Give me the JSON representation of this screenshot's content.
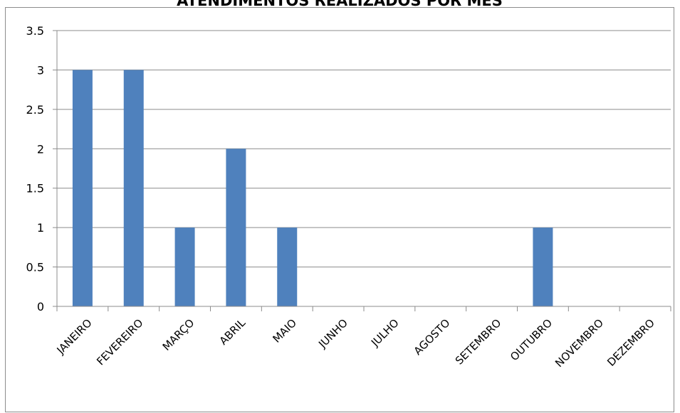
{
  "chart_data": {
    "type": "bar",
    "title": "ATENDIMENTOS REALIZADOS POR MÊS",
    "xlabel": "",
    "ylabel": "",
    "categories": [
      "JANEIRO",
      "FEVEREIRO",
      "MARÇO",
      "ABRIL",
      "MAIO",
      "JUNHO",
      "JULHO",
      "AGOSTO",
      "SETEMBRO",
      "OUTUBRO",
      "NOVEMBRO",
      "DEZEMBRO"
    ],
    "values": [
      3,
      3,
      1,
      2,
      1,
      0,
      0,
      0,
      0,
      1,
      0,
      0
    ],
    "ylim": [
      0,
      3.5
    ],
    "yticks": [
      "0",
      "0.5",
      "1",
      "1.5",
      "2",
      "2.5",
      "3",
      "3.5"
    ],
    "grid": true,
    "legend": "none",
    "bar_color": "#4f81bd"
  }
}
